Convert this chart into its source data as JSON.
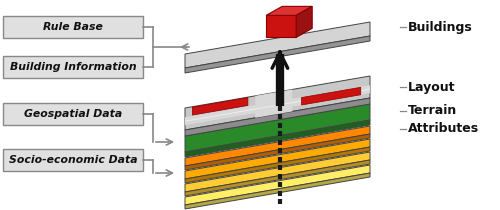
{
  "bg_color": "#ffffff",
  "labels_left": [
    "Rule Base",
    "Building Information",
    "Geospatial Data",
    "Socio-economic Data"
  ],
  "labels_right": [
    "Buildings",
    "Layout",
    "Terrain",
    "Attributes"
  ],
  "label_box_color": "#e0e0e0",
  "label_box_edge": "#888888",
  "label_text_color": "#111111",
  "right_label_color": "#111111",
  "c_yellow3": "#ffee66",
  "c_yellow2": "#ffcc33",
  "c_orange1": "#ffaa00",
  "c_orange2": "#ff8800",
  "c_green": "#2a8a2a",
  "c_gray_layout": "#c8c8c8",
  "c_gray_buildings": "#d4d4d4",
  "c_red": "#cc1111",
  "c_dark_red": "#880000",
  "c_red_top": "#dd3333",
  "c_red_right": "#991111"
}
